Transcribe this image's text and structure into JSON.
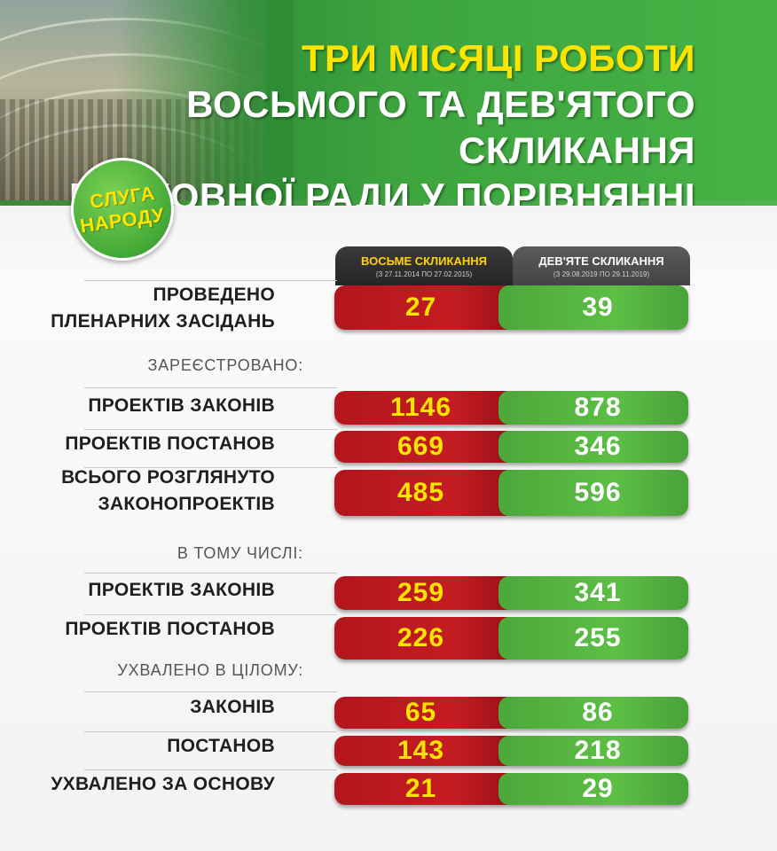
{
  "header": {
    "title_line1": "ТРИ МІСЯЦІ РОБОТИ",
    "title_line2": "ВОСЬМОГО ТА ДЕВ'ЯТОГО СКЛИКАННЯ",
    "title_line3": "ВЕРХОВНОЇ РАДИ У ПОРІВНЯННІ"
  },
  "logo": {
    "line1": "СЛУГА",
    "line2": "НАРОДУ"
  },
  "colors": {
    "eighth": "#c41c22",
    "ninth": "#5cbf45",
    "yellow_text": "#ffe400"
  },
  "chart_data": {
    "type": "table",
    "columns": [
      {
        "name": "ВОСЬМЕ СКЛИКАННЯ",
        "period": "(З 27.11.2014 ПО 27.02.2015)"
      },
      {
        "name": "ДЕВ'ЯТЕ СКЛИКАННЯ",
        "period": "(З 29.08.2019 ПО 29.11.2019)"
      }
    ],
    "sections": {
      "registered": "ЗАРЕЄСТРОВАНО:",
      "including": "В ТОМУ ЧИСЛІ:",
      "adopted": "УХВАЛЕНО В ЦІЛОМУ:"
    },
    "rows": [
      {
        "line1": "ПРОВЕДЕНО",
        "line2": "ПЛЕНАРНИХ ЗАСІДАНЬ",
        "eighth": 27,
        "ninth": 39
      },
      {
        "line1": "ПРОЕКТІВ ЗАКОНІВ",
        "line2": "",
        "eighth": 1146,
        "ninth": 878
      },
      {
        "line1": "ПРОЕКТІВ ПОСТАНОВ",
        "line2": "",
        "eighth": 669,
        "ninth": 346
      },
      {
        "line1": "ВСЬОГО РОЗГЛЯНУТО",
        "line2": "ЗАКОНОПРОЕКТІВ",
        "eighth": 485,
        "ninth": 596
      },
      {
        "line1": "ПРОЕКТІВ ЗАКОНІВ",
        "line2": "",
        "eighth": 259,
        "ninth": 341
      },
      {
        "line1": "ПРОЕКТІВ ПОСТАНОВ",
        "line2": "",
        "eighth": 226,
        "ninth": 255
      },
      {
        "line1": "ЗАКОНІВ",
        "line2": "",
        "eighth": 65,
        "ninth": 86
      },
      {
        "line1": "ПОСТАНОВ",
        "line2": "",
        "eighth": 143,
        "ninth": 218
      },
      {
        "line1": "УХВАЛЕНО ЗА ОСНОВУ",
        "line2": "",
        "eighth": 21,
        "ninth": 29
      }
    ]
  }
}
